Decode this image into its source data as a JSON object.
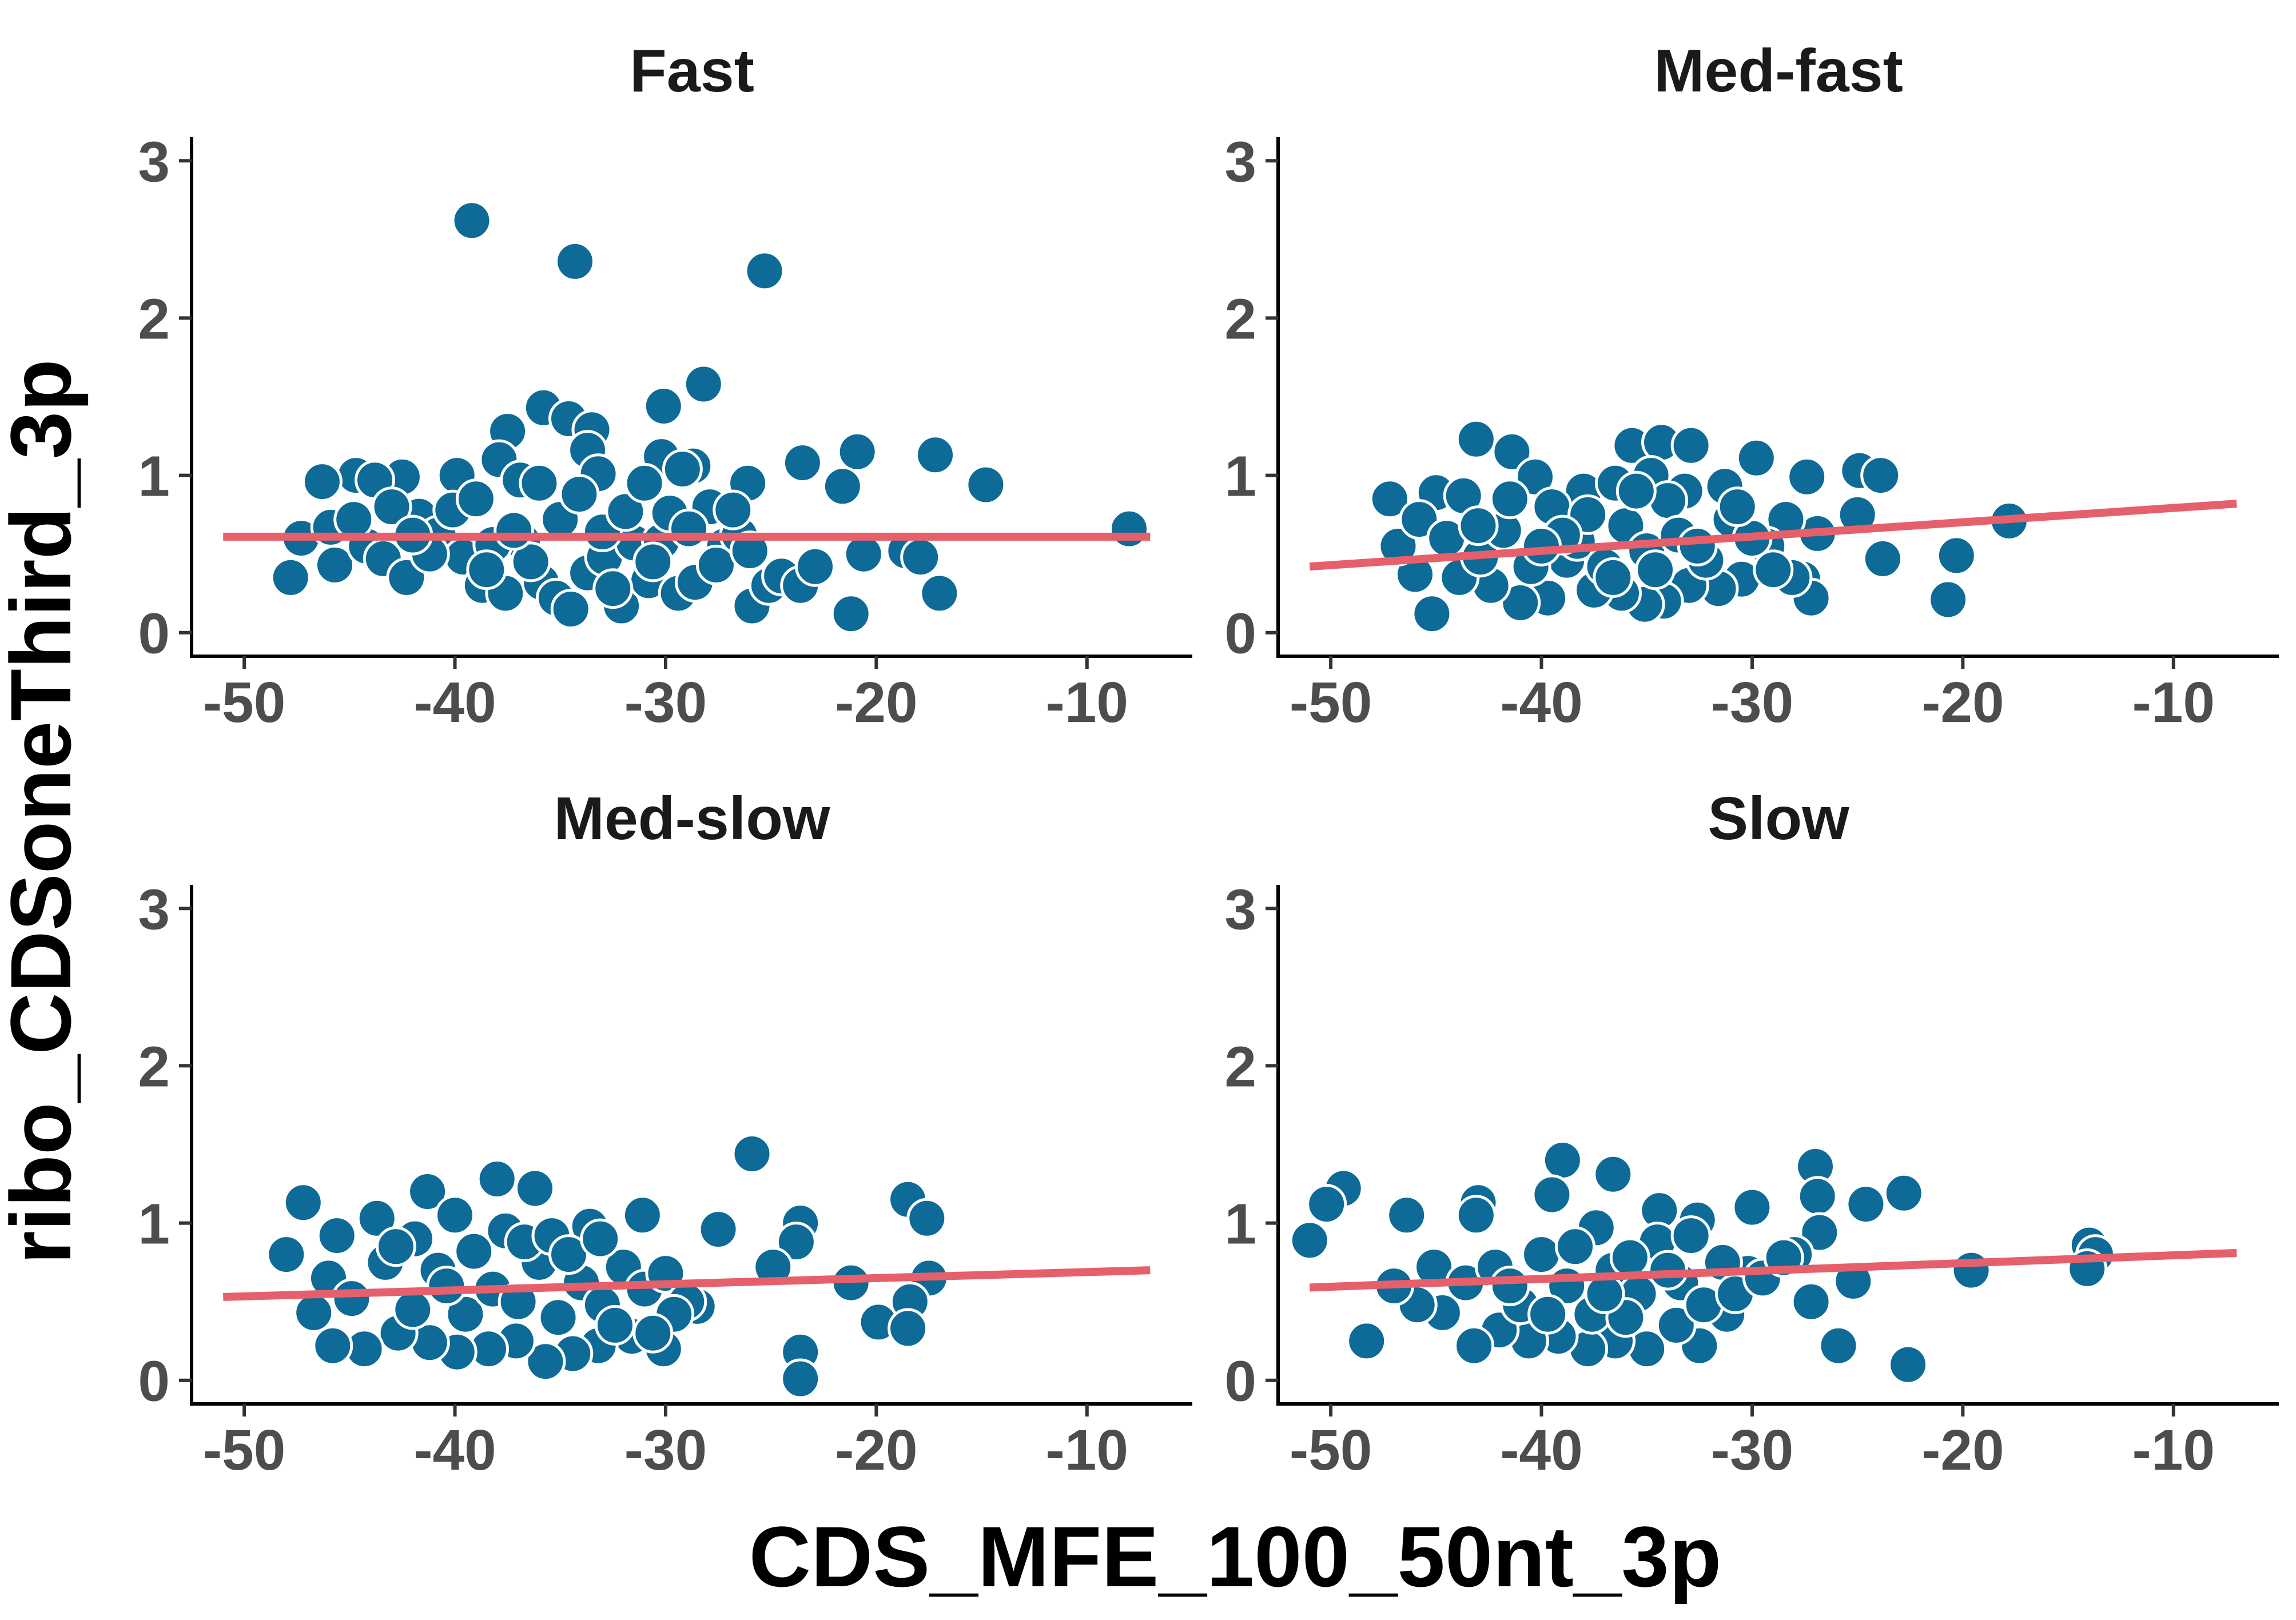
{
  "chart_data": {
    "type": "scatter",
    "xlabel": "CDS_MFE_100_50nt_3p",
    "ylabel": "ribo_CDSoneThird_3p",
    "xlim": [
      -52.5,
      -5
    ],
    "ylim": [
      -0.15,
      3.15
    ],
    "x_ticks": [
      -50,
      -40,
      -30,
      -20,
      -10
    ],
    "y_ticks": [
      0,
      1,
      2,
      3
    ],
    "grid": false,
    "legend": "none",
    "point_color": "#0e6a96",
    "point_stroke": "#ffffff",
    "trend_color": "#e5606a",
    "panels": [
      {
        "title": "Fast",
        "trend": {
          "x": [
            -51,
            -7
          ],
          "y": [
            0.61,
            0.61
          ]
        },
        "points": [
          [
            -39.2,
            2.62
          ],
          [
            -34.3,
            2.36
          ],
          [
            -25.3,
            2.3
          ],
          [
            -28.2,
            1.58
          ],
          [
            -35.8,
            1.43
          ],
          [
            -30.1,
            1.44
          ],
          [
            -34.6,
            1.36
          ],
          [
            -33.5,
            1.29
          ],
          [
            -37.5,
            1.28
          ],
          [
            -33.7,
            1.16
          ],
          [
            -37.9,
            1.1
          ],
          [
            -30.2,
            1.12
          ],
          [
            -28.7,
            1.06
          ],
          [
            -29.2,
            1.04
          ],
          [
            -33.2,
            1.01
          ],
          [
            -39.9,
            1.0
          ],
          [
            -42.5,
            0.99
          ],
          [
            -44.7,
            1.0
          ],
          [
            -43.8,
            0.97
          ],
          [
            -46.3,
            0.96
          ],
          [
            -36.9,
            0.97
          ],
          [
            -26.1,
            0.95
          ],
          [
            -23.5,
            1.08
          ],
          [
            -20.9,
            1.15
          ],
          [
            -21.6,
            0.93
          ],
          [
            -17.2,
            1.13
          ],
          [
            -14.8,
            0.94
          ],
          [
            -8.0,
            0.66
          ],
          [
            -47.8,
            0.35
          ],
          [
            -45.7,
            0.43
          ],
          [
            -47.3,
            0.6
          ],
          [
            -45.9,
            0.67
          ],
          [
            -44.2,
            0.55
          ],
          [
            -43.4,
            0.47
          ],
          [
            -42.3,
            0.35
          ],
          [
            -41.7,
            0.74
          ],
          [
            -40.8,
            0.62
          ],
          [
            -39.6,
            0.48
          ],
          [
            -38.7,
            0.3
          ],
          [
            -37.6,
            0.25
          ],
          [
            -36.8,
            0.58
          ],
          [
            -35.9,
            0.32
          ],
          [
            -35.2,
            0.22
          ],
          [
            -34.5,
            0.15
          ],
          [
            -33.7,
            0.38
          ],
          [
            -32.9,
            0.48
          ],
          [
            -32.1,
            0.17
          ],
          [
            -31.5,
            0.57
          ],
          [
            -30.8,
            0.33
          ],
          [
            -30.2,
            0.58
          ],
          [
            -29.4,
            0.25
          ],
          [
            -28.6,
            0.32
          ],
          [
            -27.9,
            0.8
          ],
          [
            -27.2,
            0.55
          ],
          [
            -26.5,
            0.62
          ],
          [
            -25.9,
            0.17
          ],
          [
            -25.1,
            0.3
          ],
          [
            -24.5,
            0.36
          ],
          [
            -23.6,
            0.3
          ],
          [
            -22.9,
            0.42
          ],
          [
            -21.2,
            0.12
          ],
          [
            -20.6,
            0.5
          ],
          [
            -18.6,
            0.52
          ],
          [
            -17.9,
            0.48
          ],
          [
            -17.0,
            0.25
          ],
          [
            -43.0,
            0.8
          ],
          [
            -41.2,
            0.5
          ],
          [
            -40.1,
            0.78
          ],
          [
            -38.2,
            0.56
          ],
          [
            -36.4,
            0.45
          ],
          [
            -35.0,
            0.72
          ],
          [
            -34.1,
            0.88
          ],
          [
            -33.0,
            0.64
          ],
          [
            -31.9,
            0.77
          ],
          [
            -30.6,
            0.45
          ],
          [
            -29.8,
            0.76
          ],
          [
            -28.9,
            0.66
          ],
          [
            -27.6,
            0.43
          ],
          [
            -26.8,
            0.78
          ],
          [
            -26.0,
            0.52
          ],
          [
            -39.0,
            0.85
          ],
          [
            -36.0,
            0.95
          ],
          [
            -42.0,
            0.62
          ],
          [
            -44.8,
            0.72
          ],
          [
            -38.5,
            0.4
          ],
          [
            -37.2,
            0.65
          ],
          [
            -32.5,
            0.28
          ],
          [
            -31.0,
            0.95
          ]
        ]
      },
      {
        "title": "Med-fast",
        "trend": {
          "x": [
            -51,
            -7
          ],
          "y": [
            0.42,
            0.82
          ]
        },
        "points": [
          [
            -43.1,
            1.23
          ],
          [
            -41.4,
            1.15
          ],
          [
            -35.7,
            1.19
          ],
          [
            -34.3,
            1.21
          ],
          [
            -32.9,
            1.19
          ],
          [
            -29.8,
            1.11
          ],
          [
            -24.9,
            1.03
          ],
          [
            -23.9,
            1.0
          ],
          [
            -27.4,
            0.99
          ],
          [
            -40.3,
            0.99
          ],
          [
            -45.0,
            0.89
          ],
          [
            -47.2,
            0.85
          ],
          [
            -43.7,
            0.87
          ],
          [
            -38.0,
            0.9
          ],
          [
            -36.5,
            0.95
          ],
          [
            -34.8,
            1.0
          ],
          [
            -33.2,
            0.9
          ],
          [
            -31.3,
            0.93
          ],
          [
            -17.8,
            0.71
          ],
          [
            -20.3,
            0.49
          ],
          [
            -20.7,
            0.21
          ],
          [
            -23.8,
            0.47
          ],
          [
            -25.0,
            0.75
          ],
          [
            -26.9,
            0.63
          ],
          [
            -28.4,
            0.72
          ],
          [
            -29.3,
            0.55
          ],
          [
            -27.6,
            0.34
          ],
          [
            -27.2,
            0.22
          ],
          [
            -28.1,
            0.35
          ],
          [
            -30.5,
            0.34
          ],
          [
            -31.6,
            0.28
          ],
          [
            -33.0,
            0.3
          ],
          [
            -34.2,
            0.2
          ],
          [
            -35.1,
            0.18
          ],
          [
            -36.2,
            0.25
          ],
          [
            -37.5,
            0.27
          ],
          [
            -38.8,
            0.46
          ],
          [
            -39.7,
            0.22
          ],
          [
            -41.0,
            0.19
          ],
          [
            -42.4,
            0.3
          ],
          [
            -43.9,
            0.35
          ],
          [
            -45.2,
            0.12
          ],
          [
            -46.0,
            0.37
          ],
          [
            -46.8,
            0.55
          ],
          [
            -45.8,
            0.72
          ],
          [
            -44.5,
            0.6
          ],
          [
            -42.9,
            0.48
          ],
          [
            -41.8,
            0.65
          ],
          [
            -40.5,
            0.42
          ],
          [
            -39.5,
            0.8
          ],
          [
            -38.3,
            0.58
          ],
          [
            -37.0,
            0.42
          ],
          [
            -36.0,
            0.68
          ],
          [
            -35.0,
            0.52
          ],
          [
            -34.0,
            0.84
          ],
          [
            -33.5,
            0.62
          ],
          [
            -32.2,
            0.46
          ],
          [
            -31.0,
            0.72
          ],
          [
            -30.0,
            0.6
          ],
          [
            -29.0,
            0.4
          ],
          [
            -37.8,
            0.75
          ],
          [
            -39.0,
            0.62
          ],
          [
            -41.5,
            0.85
          ],
          [
            -43.0,
            0.68
          ],
          [
            -36.6,
            0.35
          ],
          [
            -34.6,
            0.4
          ],
          [
            -32.6,
            0.55
          ],
          [
            -30.7,
            0.8
          ],
          [
            -40.0,
            0.55
          ],
          [
            -35.5,
            0.9
          ]
        ]
      },
      {
        "title": "Med-slow",
        "trend": {
          "x": [
            -51,
            -7
          ],
          "y": [
            0.53,
            0.7
          ]
        },
        "points": [
          [
            -25.9,
            1.44
          ],
          [
            -38.0,
            1.28
          ],
          [
            -36.2,
            1.22
          ],
          [
            -41.3,
            1.2
          ],
          [
            -47.2,
            1.13
          ],
          [
            -18.5,
            1.15
          ],
          [
            -17.6,
            1.03
          ],
          [
            -23.6,
            1.0
          ],
          [
            -27.5,
            0.96
          ],
          [
            -31.1,
            1.05
          ],
          [
            -33.6,
            0.98
          ],
          [
            -40.0,
            1.05
          ],
          [
            -43.7,
            1.03
          ],
          [
            -45.6,
            0.92
          ],
          [
            -48.0,
            0.8
          ],
          [
            -23.8,
            0.88
          ],
          [
            -17.5,
            0.65
          ],
          [
            -18.4,
            0.5
          ],
          [
            -19.9,
            0.37
          ],
          [
            -18.5,
            0.33
          ],
          [
            -21.2,
            0.62
          ],
          [
            -24.9,
            0.72
          ],
          [
            -23.6,
            0.18
          ],
          [
            -23.6,
            0.01
          ],
          [
            -28.5,
            0.47
          ],
          [
            -30.1,
            0.2
          ],
          [
            -31.6,
            0.28
          ],
          [
            -33.2,
            0.22
          ],
          [
            -34.4,
            0.17
          ],
          [
            -35.7,
            0.12
          ],
          [
            -37.1,
            0.25
          ],
          [
            -38.4,
            0.2
          ],
          [
            -39.9,
            0.18
          ],
          [
            -41.2,
            0.24
          ],
          [
            -42.7,
            0.3
          ],
          [
            -44.3,
            0.2
          ],
          [
            -45.8,
            0.22
          ],
          [
            -46.7,
            0.43
          ],
          [
            -46.0,
            0.65
          ],
          [
            -44.9,
            0.52
          ],
          [
            -43.3,
            0.75
          ],
          [
            -42.0,
            0.45
          ],
          [
            -40.8,
            0.7
          ],
          [
            -39.5,
            0.42
          ],
          [
            -38.2,
            0.58
          ],
          [
            -37.0,
            0.5
          ],
          [
            -36.0,
            0.75
          ],
          [
            -35.1,
            0.4
          ],
          [
            -34.0,
            0.62
          ],
          [
            -33.0,
            0.48
          ],
          [
            -32.0,
            0.72
          ],
          [
            -31.0,
            0.58
          ],
          [
            -30.0,
            0.68
          ],
          [
            -29.0,
            0.5
          ],
          [
            -37.6,
            0.95
          ],
          [
            -36.7,
            0.88
          ],
          [
            -35.4,
            0.92
          ],
          [
            -34.6,
            0.8
          ],
          [
            -33.1,
            0.9
          ],
          [
            -32.4,
            0.35
          ],
          [
            -39.1,
            0.82
          ],
          [
            -40.4,
            0.6
          ],
          [
            -41.9,
            0.9
          ],
          [
            -42.8,
            0.85
          ],
          [
            -29.6,
            0.42
          ],
          [
            -30.6,
            0.3
          ]
        ]
      },
      {
        "title": "Slow",
        "trend": {
          "x": [
            -51,
            -7
          ],
          "y": [
            0.59,
            0.81
          ]
        },
        "points": [
          [
            -39.0,
            1.4
          ],
          [
            -27.0,
            1.36
          ],
          [
            -36.6,
            1.31
          ],
          [
            -49.4,
            1.22
          ],
          [
            -22.8,
            1.19
          ],
          [
            -26.9,
            1.17
          ],
          [
            -30.0,
            1.1
          ],
          [
            -34.4,
            1.08
          ],
          [
            -39.5,
            1.18
          ],
          [
            -43.0,
            1.13
          ],
          [
            -50.2,
            1.12
          ],
          [
            -24.6,
            1.12
          ],
          [
            -46.4,
            1.05
          ],
          [
            -32.6,
            1.02
          ],
          [
            -37.4,
            0.97
          ],
          [
            -43.1,
            1.05
          ],
          [
            -51.0,
            0.89
          ],
          [
            -26.8,
            0.94
          ],
          [
            -14.0,
            0.86
          ],
          [
            -13.7,
            0.8
          ],
          [
            -14.1,
            0.71
          ],
          [
            -19.6,
            0.7
          ],
          [
            -25.2,
            0.63
          ],
          [
            -25.9,
            0.22
          ],
          [
            -22.6,
            0.1
          ],
          [
            -27.2,
            0.5
          ],
          [
            -28.0,
            0.8
          ],
          [
            -30.2,
            0.68
          ],
          [
            -31.2,
            0.42
          ],
          [
            -32.5,
            0.22
          ],
          [
            -33.6,
            0.35
          ],
          [
            -35.0,
            0.2
          ],
          [
            -36.5,
            0.25
          ],
          [
            -37.8,
            0.2
          ],
          [
            -39.2,
            0.28
          ],
          [
            -40.6,
            0.25
          ],
          [
            -42.0,
            0.32
          ],
          [
            -43.2,
            0.22
          ],
          [
            -44.7,
            0.43
          ],
          [
            -45.9,
            0.48
          ],
          [
            -48.3,
            0.25
          ],
          [
            -47.0,
            0.6
          ],
          [
            -45.1,
            0.72
          ],
          [
            -43.6,
            0.62
          ],
          [
            -42.2,
            0.72
          ],
          [
            -41.0,
            0.48
          ],
          [
            -40.0,
            0.8
          ],
          [
            -38.8,
            0.6
          ],
          [
            -37.6,
            0.42
          ],
          [
            -36.6,
            0.7
          ],
          [
            -35.4,
            0.55
          ],
          [
            -34.5,
            0.88
          ],
          [
            -33.4,
            0.62
          ],
          [
            -32.3,
            0.48
          ],
          [
            -31.4,
            0.75
          ],
          [
            -38.4,
            0.85
          ],
          [
            -36.0,
            0.4
          ],
          [
            -34.0,
            0.7
          ],
          [
            -32.9,
            0.92
          ],
          [
            -30.8,
            0.55
          ],
          [
            -41.5,
            0.6
          ],
          [
            -39.7,
            0.42
          ],
          [
            -35.8,
            0.78
          ],
          [
            -37.0,
            0.55
          ],
          [
            -29.5,
            0.65
          ],
          [
            -28.5,
            0.78
          ]
        ]
      }
    ]
  }
}
